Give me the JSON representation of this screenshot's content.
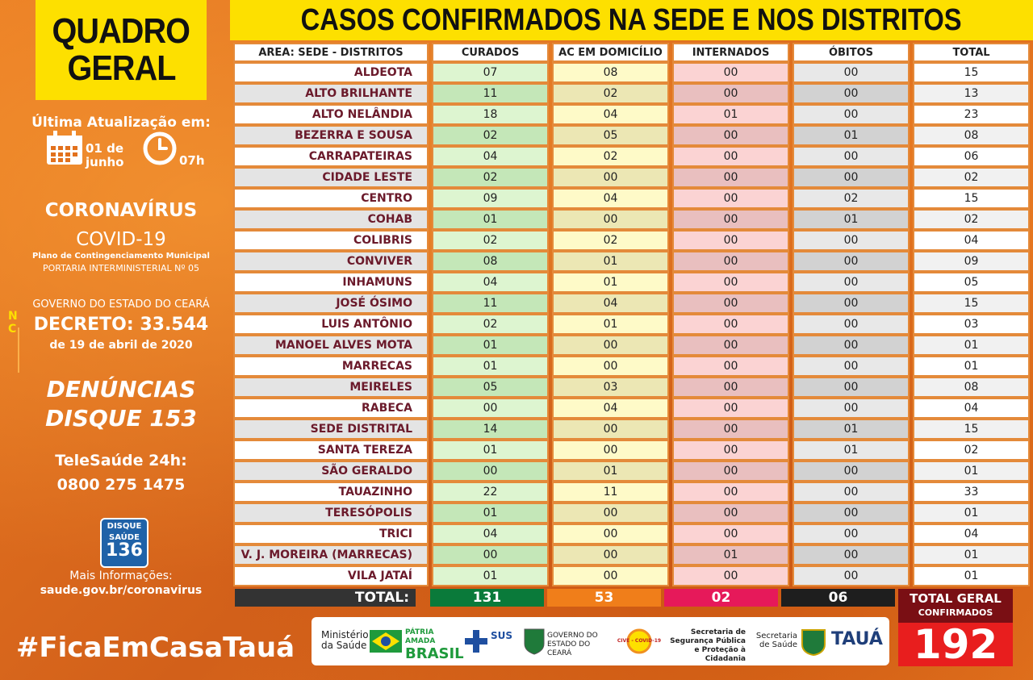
{
  "header": {
    "quadro_line1": "QUADRO",
    "quadro_line2": "GERAL",
    "title": "CASOS CONFIRMADOS NA SEDE E NOS DISTRITOS"
  },
  "sidebar": {
    "update_label": "Última Atualização em:",
    "date_line1": "01 de",
    "date_line2": "junho",
    "hour": "07h",
    "coronavirus": "CORONAVÍRUS",
    "covid": "COVID-19",
    "plano": "Plano de Contingenciamento Municipal",
    "portaria": "PORTARIA INTERMINISTERIAL Nº 05",
    "governo": "GOVERNO DO ESTADO DO CEARÁ",
    "decreto": "DECRETO: 33.544",
    "decreto_date": "de 19 de abril de 2020",
    "denuncias": "DENÚNCIAS",
    "disque153": "DISQUE 153",
    "telesaude": "TeleSaúde 24h:",
    "telefone": "0800 275 1475",
    "disque_badge_top": "DISQUE",
    "disque_badge_mid": "SAÚDE",
    "disque_badge_num": "136",
    "mais_info": "Mais Informações:",
    "site": "saude.gov.br/coronavirus",
    "hashtag": "#FicaEmCasaTauá"
  },
  "table": {
    "headers": [
      "AREA: SEDE - DISTRITOS",
      "CURADOS",
      "AC EM DOMICÍLIO",
      "INTERNADOS",
      "ÓBITOS",
      "TOTAL"
    ],
    "rows": [
      [
        "ALDEOTA",
        "07",
        "08",
        "00",
        "00",
        "15"
      ],
      [
        "ALTO BRILHANTE",
        "11",
        "02",
        "00",
        "00",
        "13"
      ],
      [
        "ALTO NELÂNDIA",
        "18",
        "04",
        "01",
        "00",
        "23"
      ],
      [
        "BEZERRA E SOUSA",
        "02",
        "05",
        "00",
        "01",
        "08"
      ],
      [
        "CARRAPATEIRAS",
        "04",
        "02",
        "00",
        "00",
        "06"
      ],
      [
        "CIDADE LESTE",
        "02",
        "00",
        "00",
        "00",
        "02"
      ],
      [
        "CENTRO",
        "09",
        "04",
        "00",
        "02",
        "15"
      ],
      [
        "COHAB",
        "01",
        "00",
        "00",
        "01",
        "02"
      ],
      [
        "COLIBRIS",
        "02",
        "02",
        "00",
        "00",
        "04"
      ],
      [
        "CONVIVER",
        "08",
        "01",
        "00",
        "00",
        "09"
      ],
      [
        "INHAMUNS",
        "04",
        "01",
        "00",
        "00",
        "05"
      ],
      [
        "JOSÉ ÓSIMO",
        "11",
        "04",
        "00",
        "00",
        "15"
      ],
      [
        "LUIS ANTÔNIO",
        "02",
        "01",
        "00",
        "00",
        "03"
      ],
      [
        "MANOEL ALVES MOTA",
        "01",
        "00",
        "00",
        "00",
        "01"
      ],
      [
        "MARRECAS",
        "01",
        "00",
        "00",
        "00",
        "01"
      ],
      [
        "MEIRELES",
        "05",
        "03",
        "00",
        "00",
        "08"
      ],
      [
        "RABECA",
        "00",
        "04",
        "00",
        "00",
        "04"
      ],
      [
        "SEDE DISTRITAL",
        "14",
        "00",
        "00",
        "01",
        "15"
      ],
      [
        "SANTA TEREZA",
        "01",
        "00",
        "00",
        "01",
        "02"
      ],
      [
        "SÃO GERALDO",
        "00",
        "01",
        "00",
        "00",
        "01"
      ],
      [
        "TAUAZINHO",
        "22",
        "11",
        "00",
        "00",
        "33"
      ],
      [
        "TERESÓPOLIS",
        "01",
        "00",
        "00",
        "00",
        "01"
      ],
      [
        "TRICI",
        "04",
        "00",
        "00",
        "00",
        "04"
      ],
      [
        "V. J. MOREIRA (MARRECAS)",
        "00",
        "00",
        "01",
        "00",
        "01"
      ],
      [
        "VILA JATAÍ",
        "01",
        "00",
        "00",
        "00",
        "01"
      ]
    ],
    "totals": {
      "label": "TOTAL:",
      "curados": "131",
      "ac_domicilio": "53",
      "internados": "02",
      "obitos": "06"
    },
    "total_geral_label": "TOTAL GERAL",
    "confirmados_label": "CONFIRMADOS",
    "total_geral": "192"
  },
  "logos": {
    "ministerio": "Ministério da Saúde",
    "patria_line1": "PÁTRIA AMADA",
    "patria_line2": "BRASIL",
    "sus": "SUS",
    "governo_ceara": "GOVERNO DO ESTADO DO CEARÁ",
    "covid_ceara": "CIVE - COVID-19",
    "seguranca": "Secretaria de Segurança Pública e Proteção à Cidadania",
    "secretaria_saude": "Secretaria de Saúde",
    "taua": "TAUÁ"
  },
  "colors": {
    "yellow": "#fde000",
    "curados_total": "#0a7a3a",
    "ac_total": "#f07e1a",
    "internados_total": "#e6195a",
    "obitos_total": "#1e1e1e",
    "total_geral": "#e81e1e"
  }
}
